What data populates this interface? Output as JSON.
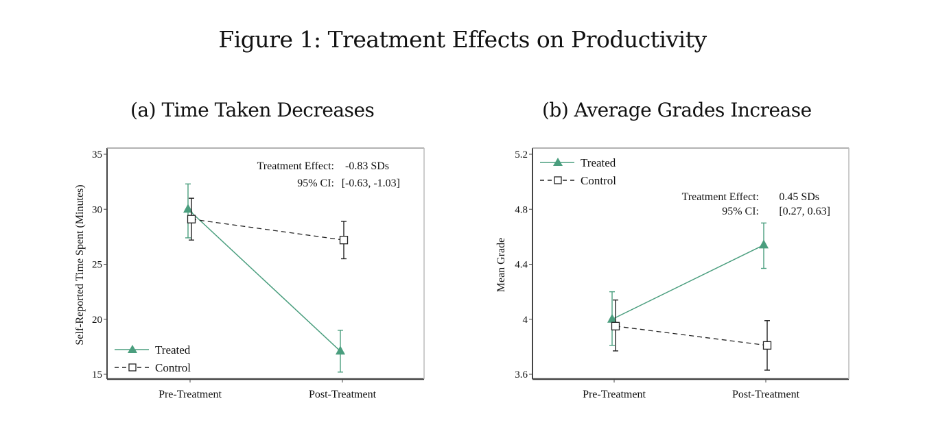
{
  "figure": {
    "title": "Figure 1: Treatment Effects on Productivity"
  },
  "colors": {
    "treated": "#4a9e7e",
    "control": "#222222",
    "axis": "#444444"
  },
  "chart_data": [
    {
      "type": "line",
      "title": "(a) Time Taken Decreases",
      "xlabel": "",
      "ylabel": "Self-Reported Time Spent (Minutes)",
      "categories": [
        "Pre-Treatment",
        "Post-Treatment"
      ],
      "ylim": [
        15,
        35
      ],
      "yticks": [
        15,
        20,
        25,
        30,
        35
      ],
      "ytick_labels": [
        "15",
        "20",
        "25",
        "30",
        "35"
      ],
      "grid": false,
      "legend_position": "bottom-left",
      "series": [
        {
          "name": "Treated",
          "marker": "triangle",
          "line_style": "solid",
          "values": [
            30.0,
            17.1
          ],
          "ci_low": [
            27.4,
            15.2
          ],
          "ci_high": [
            32.3,
            19.0
          ]
        },
        {
          "name": "Control",
          "marker": "square-hollow",
          "line_style": "dashed",
          "values": [
            29.1,
            27.2
          ],
          "ci_low": [
            27.2,
            25.5
          ],
          "ci_high": [
            31.0,
            28.9
          ]
        }
      ],
      "annotation": {
        "line1_label": "Treatment Effect:",
        "line1_value": "-0.83 SDs",
        "line2_label": "95% CI:",
        "line2_value": "[-0.63, -1.03]",
        "position": "top-right"
      }
    },
    {
      "type": "line",
      "title": "(b) Average Grades Increase",
      "xlabel": "",
      "ylabel": "Mean Grade",
      "categories": [
        "Pre-Treatment",
        "Post-Treatment"
      ],
      "ylim": [
        3.6,
        5.2
      ],
      "yticks": [
        3.6,
        4.0,
        4.4,
        4.8,
        5.2
      ],
      "ytick_labels": [
        "3.6",
        "4",
        "4.4",
        "4.8",
        "5.2"
      ],
      "grid": false,
      "legend_position": "top-left",
      "series": [
        {
          "name": "Treated",
          "marker": "triangle",
          "line_style": "solid",
          "values": [
            4.0,
            4.54
          ],
          "ci_low": [
            3.81,
            4.37
          ],
          "ci_high": [
            4.2,
            4.7
          ]
        },
        {
          "name": "Control",
          "marker": "square-hollow",
          "line_style": "dashed",
          "values": [
            3.95,
            3.81
          ],
          "ci_low": [
            3.77,
            3.63
          ],
          "ci_high": [
            4.14,
            3.99
          ]
        }
      ],
      "annotation": {
        "line1_label": "Treatment Effect:",
        "line1_value": "0.45 SDs",
        "line2_label": "95% CI:",
        "line2_value": "[0.27, 0.63]",
        "position": "top-right"
      }
    }
  ]
}
